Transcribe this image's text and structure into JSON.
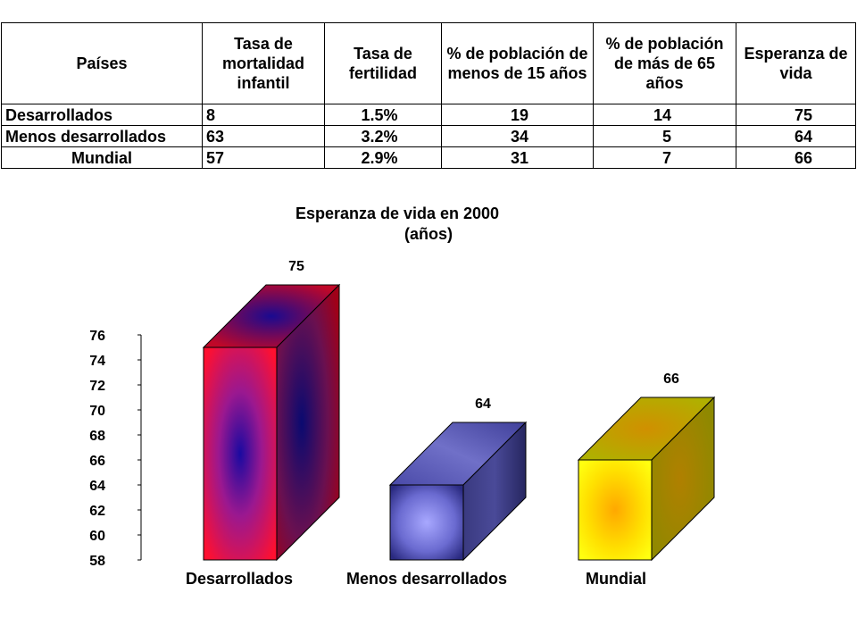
{
  "table": {
    "headers": [
      "Países",
      "Tasa de mortalidad infantil",
      "Tasa de fertilidad",
      "% de población de menos de 15 años",
      "% de población de más de 65 años",
      "Esperanza de vida"
    ],
    "rows": [
      [
        "Desarrollados",
        "8",
        "1.5%",
        "19",
        "14",
        "75"
      ],
      [
        "Menos desarrollados",
        "63",
        "3.2%",
        "34",
        "5",
        "64"
      ],
      [
        "Mundial",
        "57",
        "2.9%",
        "31",
        "7",
        "66"
      ]
    ]
  },
  "chart_data": {
    "type": "bar",
    "title": "Esperanza de vida en 2000",
    "subtitle": "(años)",
    "categories": [
      "Desarrollados",
      "Menos desarrollados",
      "Mundial"
    ],
    "values": [
      75,
      64,
      66
    ],
    "data_labels": [
      "75",
      "64",
      "66"
    ],
    "ylim": [
      58,
      76
    ],
    "yticks": [
      "58",
      "60",
      "62",
      "64",
      "66",
      "68",
      "70",
      "72",
      "74",
      "76"
    ],
    "grid": false,
    "legend": "none",
    "style": "3d-column",
    "colors": [
      "#ff0000",
      "#4a4aa0",
      "#ffff00"
    ]
  }
}
